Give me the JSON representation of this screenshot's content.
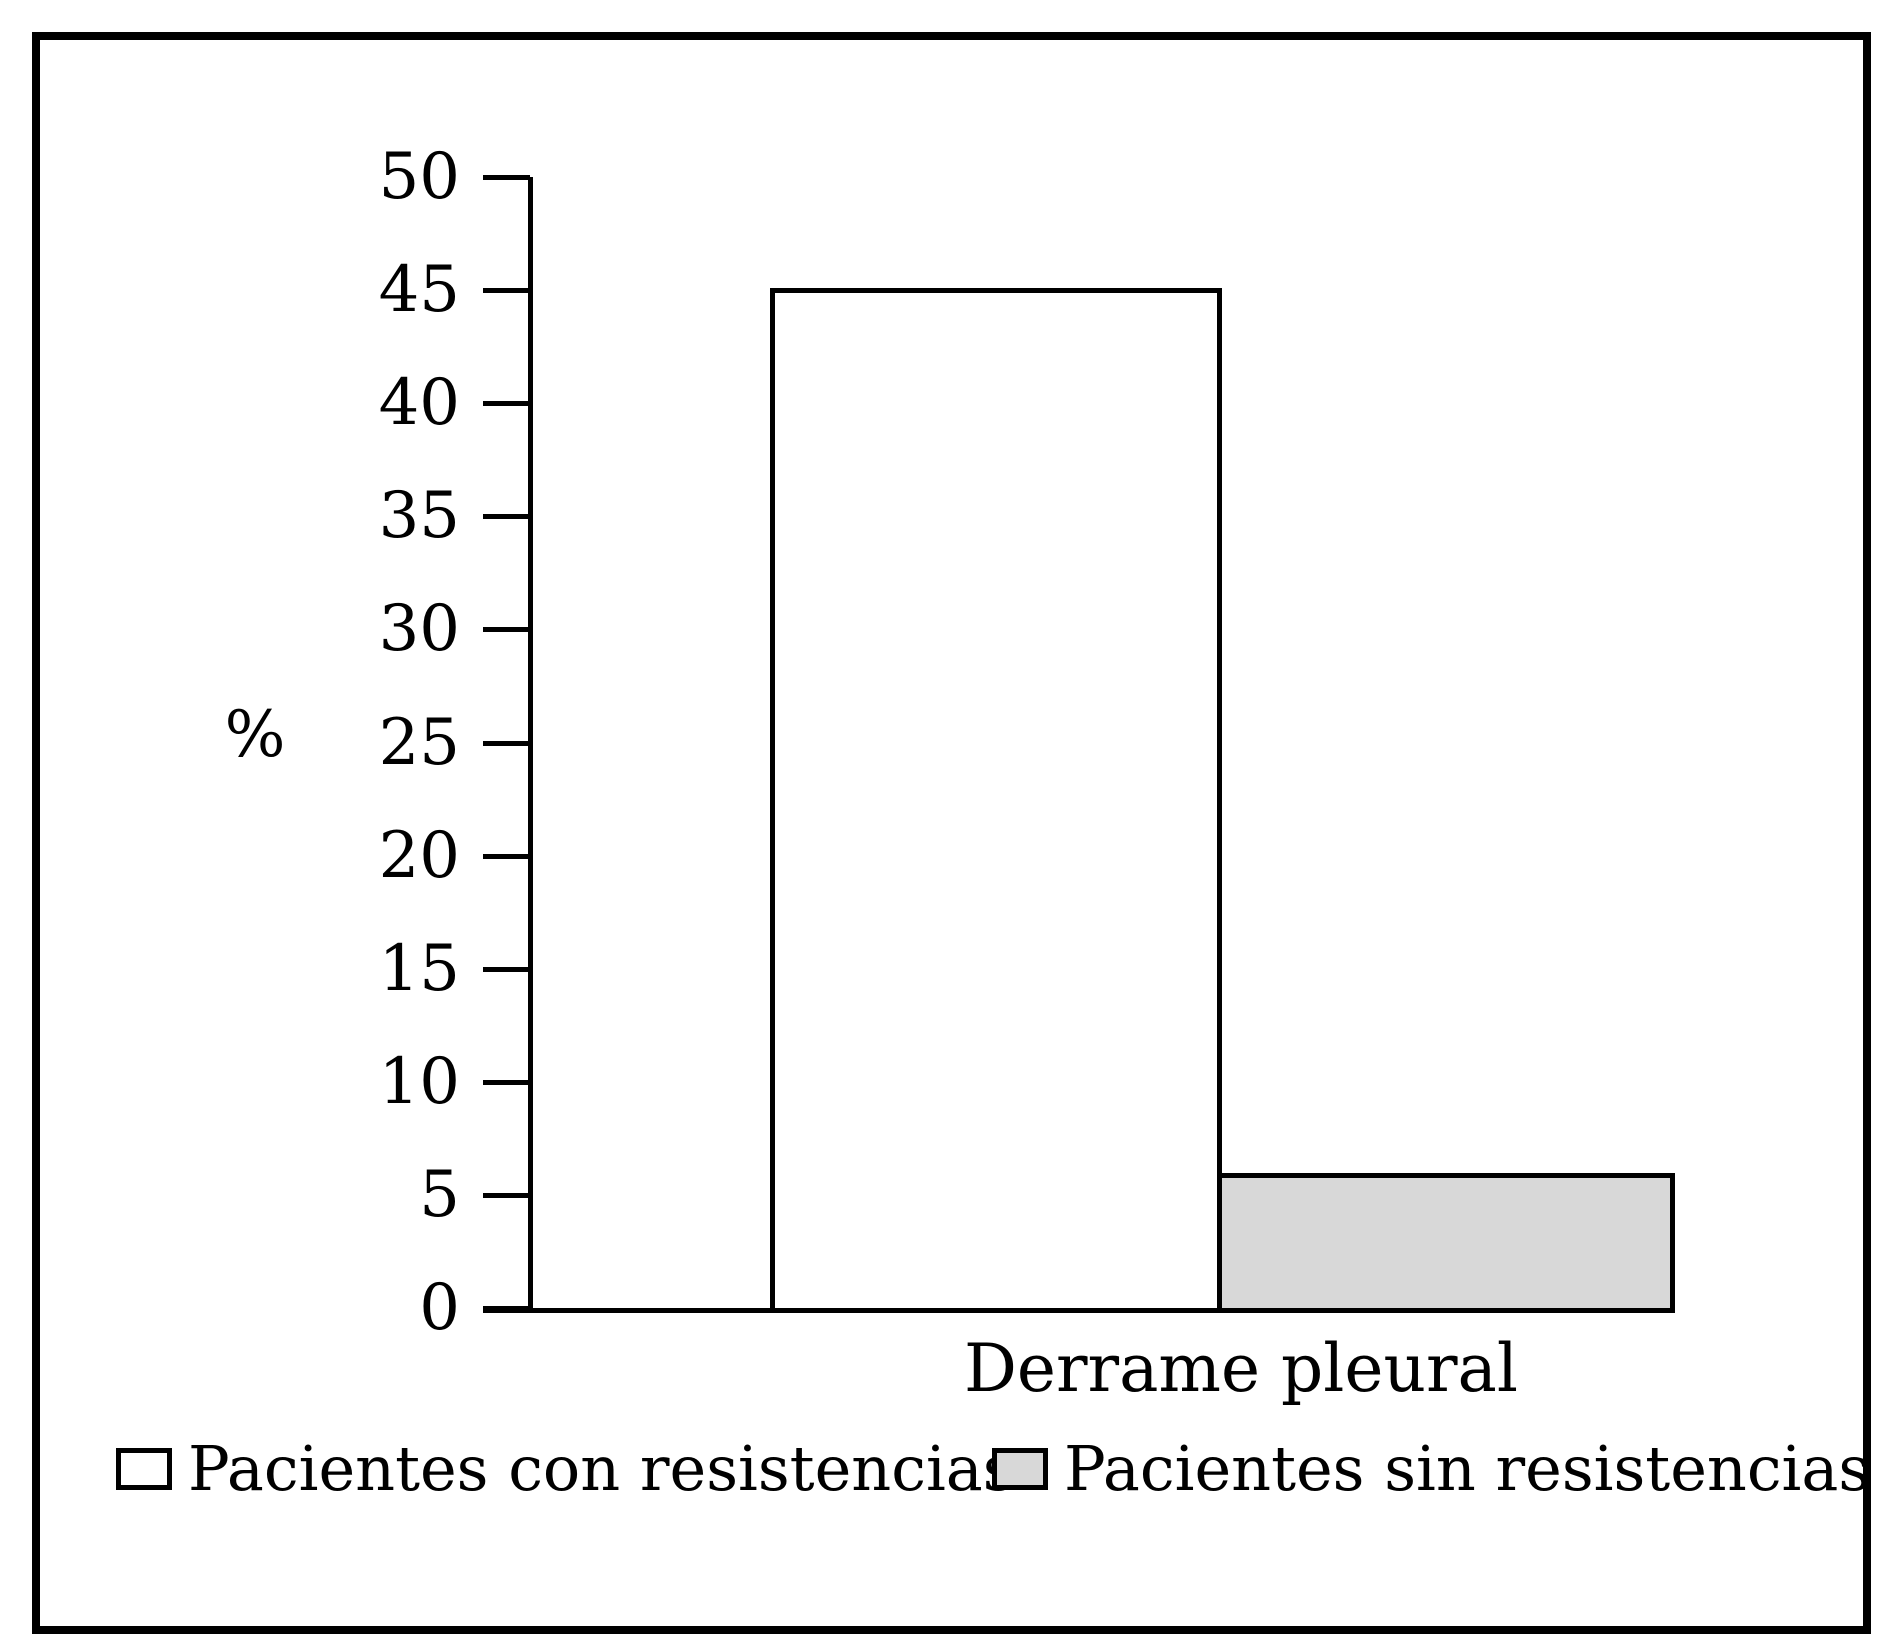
{
  "figure": {
    "ylabel": "%",
    "category_label": "Derrame pleural"
  },
  "legend": {
    "items": [
      {
        "label": "Pacientes con resistencias",
        "fill": "#ffffff"
      },
      {
        "label": "Pacientes sin resistencias",
        "fill": "#d8d8d8"
      }
    ]
  },
  "colors": {
    "ink": "#000000",
    "paper": "#ffffff",
    "gray_fill": "#d8d8d8"
  },
  "chart_data": {
    "type": "bar",
    "categories": [
      "Derrame pleural"
    ],
    "series": [
      {
        "name": "Pacientes con resistencias",
        "values": [
          45.3
        ],
        "fill": "#ffffff"
      },
      {
        "name": "Pacientes sin resistencias",
        "values": [
          6.2
        ],
        "fill": "#d8d8d8"
      }
    ],
    "title": "",
    "xlabel": "",
    "ylabel": "%",
    "ylim": [
      0,
      50
    ],
    "yticks": [
      50,
      45,
      40,
      35,
      30,
      25,
      20,
      15,
      10,
      5,
      0
    ],
    "grid": false,
    "legend_position": "bottom",
    "bar_edge_color": "#000000"
  }
}
